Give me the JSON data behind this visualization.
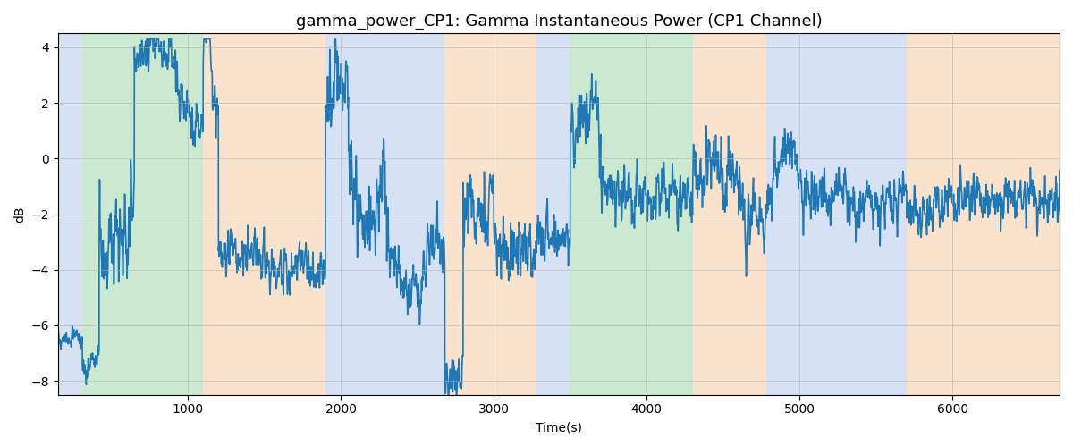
{
  "title": "gamma_power_CP1: Gamma Instantaneous Power (CP1 Channel)",
  "xlabel": "Time(s)",
  "ylabel": "dB",
  "ylim": [
    -8.5,
    4.5
  ],
  "xlim": [
    150,
    6700
  ],
  "bg_bands": [
    {
      "xmin": 150,
      "xmax": 310,
      "color": "#aec6e8",
      "alpha": 0.5
    },
    {
      "xmin": 310,
      "xmax": 1100,
      "color": "#98d4a3",
      "alpha": 0.5
    },
    {
      "xmin": 1100,
      "xmax": 1900,
      "color": "#f7c99a",
      "alpha": 0.5
    },
    {
      "xmin": 1900,
      "xmax": 2680,
      "color": "#aec6e8",
      "alpha": 0.5
    },
    {
      "xmin": 2680,
      "xmax": 3280,
      "color": "#f7c99a",
      "alpha": 0.5
    },
    {
      "xmin": 3280,
      "xmax": 3500,
      "color": "#aec6e8",
      "alpha": 0.5
    },
    {
      "xmin": 3500,
      "xmax": 4300,
      "color": "#98d4a3",
      "alpha": 0.5
    },
    {
      "xmin": 4300,
      "xmax": 4780,
      "color": "#f7c99a",
      "alpha": 0.5
    },
    {
      "xmin": 4780,
      "xmax": 5700,
      "color": "#aec6e8",
      "alpha": 0.5
    },
    {
      "xmin": 5700,
      "xmax": 5870,
      "color": "#f7c99a",
      "alpha": 0.5
    },
    {
      "xmin": 5870,
      "xmax": 6700,
      "color": "#f7c99a",
      "alpha": 0.5
    }
  ],
  "line_color": "#1f77b4",
  "line_width": 1.2,
  "grid_color": "#b0b0b0",
  "grid_alpha": 0.5,
  "title_fontsize": 13,
  "x_start": 150,
  "x_end": 6700,
  "n_points": 6550
}
